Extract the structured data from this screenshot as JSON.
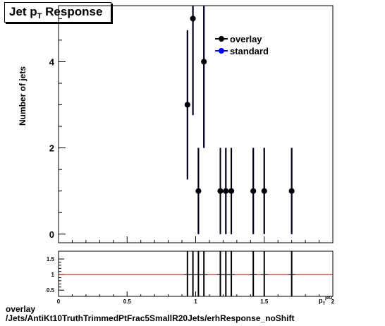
{
  "title": {
    "prefix": "Jet p",
    "sub": "T",
    "suffix": " Response"
  },
  "footer": {
    "line1": "overlay",
    "line2": "/Jets/AntiKt10TruthTrimmedPtFrac5SmallR20Jets/erhResponse_noShift"
  },
  "colors": {
    "overlay": "#000000",
    "standard": "#0000ff",
    "ratio_line": "#aa0000"
  },
  "chart_data": [
    {
      "type": "scatter",
      "ylabel": "Number of jets",
      "xlim": [
        0,
        2
      ],
      "ylim": [
        -0.2,
        5.3
      ],
      "yticks": [
        0,
        2,
        4
      ],
      "legend": {
        "position": "top-right",
        "entries": [
          "overlay",
          "standard"
        ]
      },
      "series": [
        {
          "name": "overlay",
          "x": [
            0.94,
            0.98,
            1.02,
            1.06,
            1.18,
            1.22,
            1.26,
            1.42,
            1.5,
            1.7
          ],
          "y": [
            3,
            5,
            1,
            4,
            1,
            1,
            1,
            1,
            1,
            1
          ],
          "yerr": [
            1.73,
            2.24,
            1,
            2,
            1,
            1,
            1,
            1,
            1,
            1
          ]
        },
        {
          "name": "standard",
          "x": [
            0.94,
            0.98,
            1.02,
            1.06,
            1.18,
            1.22,
            1.26,
            1.42,
            1.5,
            1.7
          ],
          "y": [
            3,
            5,
            1,
            4,
            1,
            1,
            1,
            1,
            1,
            1
          ],
          "yerr": [
            1.73,
            2.24,
            1,
            2,
            1,
            1,
            1,
            1,
            1,
            1
          ]
        }
      ]
    },
    {
      "type": "line",
      "xlabel": "p_T^{jet2}",
      "xlabel_main": "p",
      "xlabel_sub": "T",
      "xlabel_sup": "jet2",
      "xlim": [
        0,
        2
      ],
      "ylim": [
        0.3,
        1.75
      ],
      "xticks": [
        "0",
        "0.5",
        "1",
        "1.5",
        "2"
      ],
      "yticks": [
        "0.5",
        "1",
        "1.5"
      ],
      "reference_line": 1,
      "series": [
        {
          "name": "ratio",
          "x": [
            0.94,
            0.98,
            1.02,
            1.06,
            1.18,
            1.22,
            1.26,
            1.42,
            1.5,
            1.7
          ],
          "y": [
            1,
            1,
            1,
            1,
            1,
            1,
            1,
            1,
            1,
            1
          ],
          "yerr": [
            1.5,
            1.5,
            1.5,
            1.5,
            1.5,
            1.5,
            1.5,
            1.5,
            1.5,
            1.5
          ]
        }
      ]
    }
  ]
}
